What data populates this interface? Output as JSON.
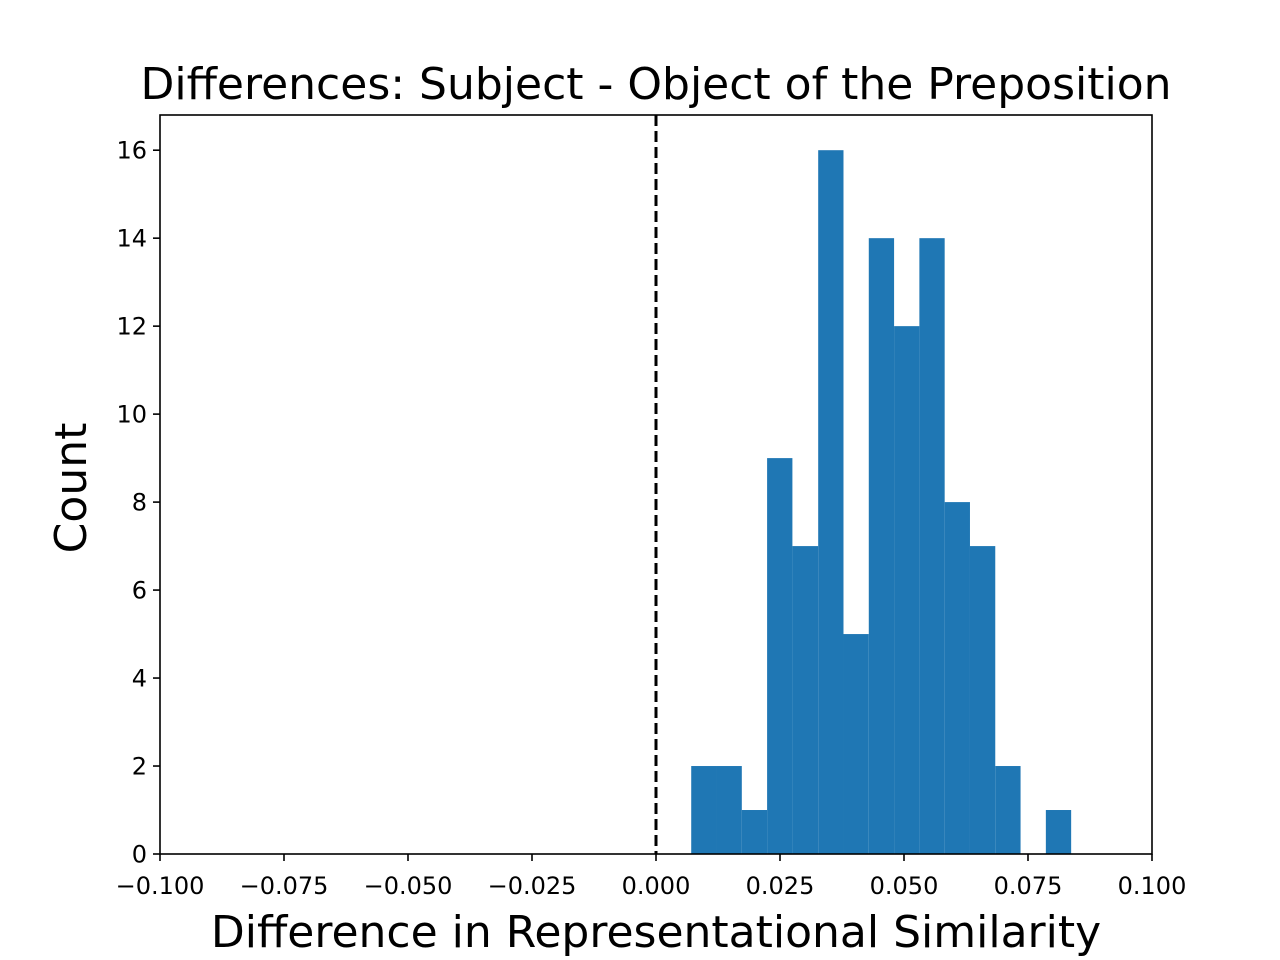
{
  "chart_data": {
    "type": "histogram",
    "title": "Differences: Subject - Object of the Preposition",
    "xlabel": "Difference in Representational Similarity",
    "ylabel": "Count",
    "xlim": [
      -0.1,
      0.1
    ],
    "ylim": [
      0,
      16.8
    ],
    "x_ticks": [
      -0.1,
      -0.075,
      -0.05,
      -0.025,
      0.0,
      0.025,
      0.05,
      0.075,
      0.1
    ],
    "x_tick_labels": [
      "−0.100",
      "−0.075",
      "−0.050",
      "−0.025",
      "0.000",
      "0.025",
      "0.050",
      "0.075",
      "0.100"
    ],
    "y_ticks": [
      0,
      2,
      4,
      6,
      8,
      10,
      12,
      14,
      16
    ],
    "y_tick_labels": [
      "0",
      "2",
      "4",
      "6",
      "8",
      "10",
      "12",
      "14",
      "16"
    ],
    "bin_edges": [
      0.0071,
      0.0122,
      0.0173,
      0.0224,
      0.0275,
      0.0327,
      0.0378,
      0.0429,
      0.048,
      0.0531,
      0.0582,
      0.0633,
      0.0684,
      0.0735,
      0.0786,
      0.0837
    ],
    "counts": [
      2,
      2,
      1,
      9,
      7,
      16,
      5,
      14,
      12,
      14,
      8,
      7,
      2,
      0,
      1
    ],
    "bar_color": "#1f77b4",
    "reference_line": {
      "x": 0.0,
      "style": "dashed",
      "color": "#000000"
    },
    "grid": false,
    "legend": "none"
  }
}
